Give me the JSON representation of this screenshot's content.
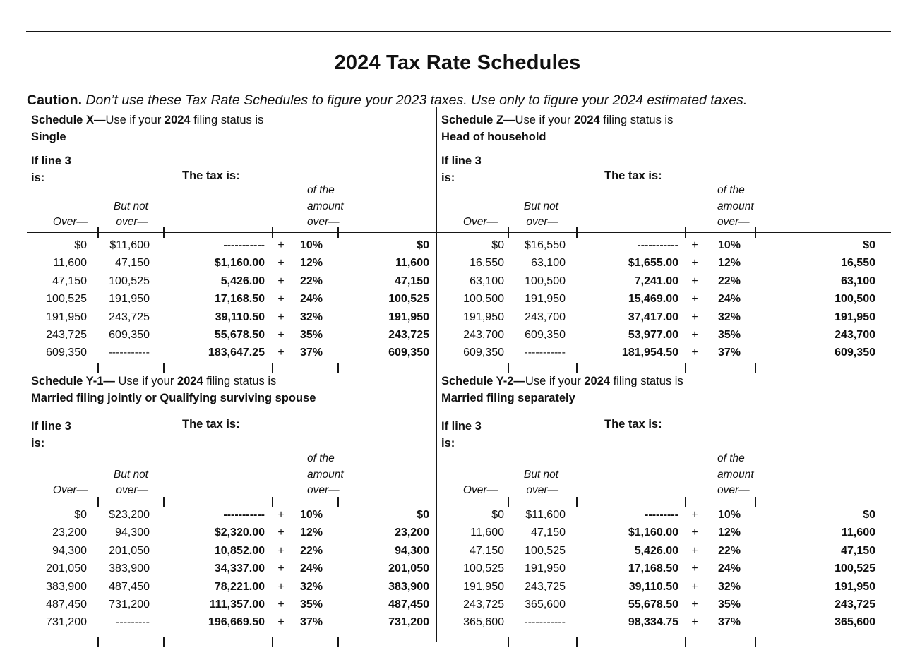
{
  "title": "2024 Tax Rate Schedules",
  "caution": {
    "label": "Caution.",
    "text": "Don’t use these Tax Rate Schedules to figure your 2023 taxes. Use only to figure your 2024 estimated taxes."
  },
  "labels": {
    "if_line3_l1": "If line 3",
    "if_line3_l2": "is:",
    "tax_is": "The tax is:",
    "over": "Over—",
    "but_not_l1": "But not",
    "but_not_l2": "over—",
    "amount_l1": "of the",
    "amount_l2": "amount",
    "amount_l3": "over—",
    "plus": "+"
  },
  "schedules": [
    {
      "name": "Schedule X—",
      "use": "Use if your ",
      "year": "2024",
      "suffix": " filing status is",
      "status": "Single",
      "rows": [
        [
          "$0",
          "$11,600",
          "-----------",
          "10%",
          "$0"
        ],
        [
          "11,600",
          "47,150",
          "$1,160.00",
          "12%",
          "11,600"
        ],
        [
          "47,150",
          "100,525",
          "5,426.00",
          "22%",
          "47,150"
        ],
        [
          "100,525",
          "191,950",
          "17,168.50",
          "24%",
          "100,525"
        ],
        [
          "191,950",
          "243,725",
          "39,110.50",
          "32%",
          "191,950"
        ],
        [
          "243,725",
          "609,350",
          "55,678.50",
          "35%",
          "243,725"
        ],
        [
          "609,350",
          "-----------",
          "183,647.25",
          "37%",
          "609,350"
        ]
      ]
    },
    {
      "name": "Schedule Z—",
      "use": "Use if your ",
      "year": "2024",
      "suffix": " filing status is",
      "status": "Head of household",
      "rows": [
        [
          "$0",
          "$16,550",
          "-----------",
          "10%",
          "$0"
        ],
        [
          "16,550",
          "63,100",
          "$1,655.00",
          "12%",
          "16,550"
        ],
        [
          "63,100",
          "100,500",
          "7,241.00",
          "22%",
          "63,100"
        ],
        [
          "100,500",
          "191,950",
          "15,469.00",
          "24%",
          "100,500"
        ],
        [
          "191,950",
          "243,700",
          "37,417.00",
          "32%",
          "191,950"
        ],
        [
          "243,700",
          "609,350",
          "53,977.00",
          "35%",
          "243,700"
        ],
        [
          "609,350",
          "-----------",
          "181,954.50",
          "37%",
          "609,350"
        ]
      ]
    },
    {
      "name": "Schedule Y-1— ",
      "use": "Use if your ",
      "year": "2024",
      "suffix": " filing status is",
      "status": "Married filing jointly or Qualifying surviving spouse",
      "rows": [
        [
          "$0",
          "$23,200",
          "-----------",
          "10%",
          "$0"
        ],
        [
          "23,200",
          "94,300",
          "$2,320.00",
          "12%",
          "23,200"
        ],
        [
          "94,300",
          "201,050",
          "10,852.00",
          "22%",
          "94,300"
        ],
        [
          "201,050",
          "383,900",
          "34,337.00",
          "24%",
          "201,050"
        ],
        [
          "383,900",
          "487,450",
          "78,221.00",
          "32%",
          "383,900"
        ],
        [
          "487,450",
          "731,200",
          "111,357.00",
          "35%",
          "487,450"
        ],
        [
          "731,200",
          "---------",
          "196,669.50",
          "37%",
          "731,200"
        ]
      ]
    },
    {
      "name": "Schedule Y-2—",
      "use": "Use if your ",
      "year": "2024",
      "suffix": " filing status is",
      "status": "Married filing separately",
      "rows": [
        [
          "$0",
          "$11,600",
          "---------",
          "10%",
          "$0"
        ],
        [
          "11,600",
          "47,150",
          "$1,160.00",
          "12%",
          "11,600"
        ],
        [
          "47,150",
          "100,525",
          "5,426.00",
          "22%",
          "47,150"
        ],
        [
          "100,525",
          "191,950",
          "17,168.50",
          "24%",
          "100,525"
        ],
        [
          "191,950",
          "243,725",
          "39,110.50",
          "32%",
          "191,950"
        ],
        [
          "243,725",
          "365,600",
          "55,678.50",
          "35%",
          "243,725"
        ],
        [
          "365,600",
          "-----------",
          "98,334.75",
          "37%",
          "365,600"
        ]
      ]
    }
  ]
}
